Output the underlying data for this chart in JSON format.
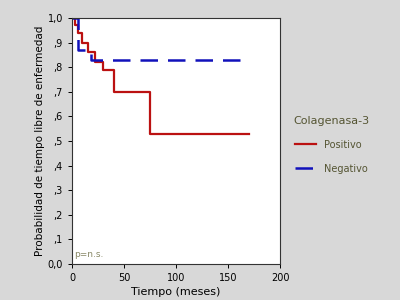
{
  "title": "",
  "xlabel": "Tiempo (meses)",
  "ylabel": "Probabilidad de tiempo libre de enfermedad",
  "xlim": [
    0,
    200
  ],
  "ylim": [
    0.0,
    1.0
  ],
  "xticks": [
    0,
    50,
    100,
    150,
    200
  ],
  "yticks": [
    0.0,
    0.1,
    0.2,
    0.3,
    0.4,
    0.5,
    0.6,
    0.7,
    0.8,
    0.9,
    1.0
  ],
  "ytick_labels": [
    "0,0",
    ",1",
    ",2",
    ",3",
    ",4",
    ",5",
    ",6",
    ",7",
    ",8",
    ",9",
    "1,0"
  ],
  "annotation": "p=n.s.",
  "legend_title": "Colagenasa-3",
  "legend_label1": "Positivo",
  "legend_label2": "Negativo",
  "bg_color": "#d8d8d8",
  "plot_bg_color": "#ffffff",
  "positivo_color": "#bb1111",
  "negativo_color": "#1111bb",
  "positivo_x": [
    0,
    3,
    3,
    6,
    6,
    10,
    10,
    15,
    15,
    22,
    22,
    30,
    30,
    40,
    40,
    75,
    75,
    170
  ],
  "positivo_y": [
    1.0,
    1.0,
    0.97,
    0.97,
    0.94,
    0.94,
    0.9,
    0.9,
    0.86,
    0.86,
    0.82,
    0.82,
    0.79,
    0.79,
    0.7,
    0.7,
    0.53,
    0.53
  ],
  "negativo_x": [
    0,
    6,
    6,
    18,
    18,
    170
  ],
  "negativo_y": [
    1.0,
    1.0,
    0.87,
    0.87,
    0.83,
    0.83
  ],
  "figsize": [
    4.0,
    3.0
  ],
  "dpi": 100
}
